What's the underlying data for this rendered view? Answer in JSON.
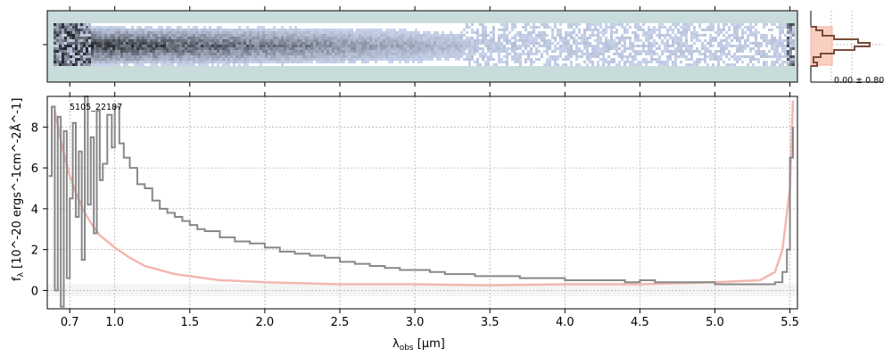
{
  "chart_data": [
    {
      "type": "heatmap",
      "panel": "2d-spectrum",
      "colormap": "bone_r",
      "background": "#c8dcdb",
      "profile_panel": {
        "type": "histogram",
        "range_label": "0.00 ± 0.80",
        "model_color": "#f4b09e",
        "data_color": "#7a4a3a"
      }
    },
    {
      "type": "line",
      "panel": "1d-spectrum",
      "object_label": "5105_22187",
      "xlabel_main": "λ",
      "xlabel_sub": "obs",
      "xlabel_unit": " [μm]",
      "ylabel_main": "f",
      "ylabel_sub": "λ",
      "ylabel_unit": " [10^-20 ergs^-1cm^-2Å^-1]",
      "x_ticks": [
        "0.7",
        "1.0",
        "1.5",
        "2.0",
        "2.5",
        "3.0",
        "3.5",
        "4.0",
        "4.5",
        "5.0",
        "5.5"
      ],
      "x_tick_values": [
        0.7,
        1.0,
        1.5,
        2.0,
        2.5,
        3.0,
        3.5,
        4.0,
        4.5,
        5.0,
        5.5
      ],
      "y_ticks": [
        "0",
        "2",
        "4",
        "6",
        "8"
      ],
      "y_tick_values": [
        0,
        2,
        4,
        6,
        8
      ],
      "xlim": [
        0.55,
        5.55
      ],
      "ylim": [
        -0.9,
        9.5
      ],
      "grid": true,
      "series": [
        {
          "role": "data",
          "color": "#888888",
          "x": [
            0.56,
            0.58,
            0.6,
            0.62,
            0.64,
            0.66,
            0.68,
            0.7,
            0.72,
            0.74,
            0.76,
            0.78,
            0.8,
            0.82,
            0.84,
            0.86,
            0.88,
            0.9,
            0.92,
            0.95,
            0.98,
            1.0,
            1.03,
            1.06,
            1.1,
            1.15,
            1.2,
            1.25,
            1.3,
            1.35,
            1.4,
            1.45,
            1.5,
            1.55,
            1.6,
            1.7,
            1.8,
            1.9,
            2.0,
            2.1,
            2.2,
            2.3,
            2.4,
            2.5,
            2.6,
            2.7,
            2.8,
            2.9,
            3.0,
            3.1,
            3.2,
            3.3,
            3.4,
            3.5,
            3.6,
            3.7,
            3.8,
            3.9,
            4.0,
            4.1,
            4.2,
            4.3,
            4.4,
            4.5,
            4.6,
            4.7,
            4.8,
            4.9,
            5.0,
            5.1,
            5.2,
            5.3,
            5.4,
            5.45,
            5.48,
            5.5,
            5.52
          ],
          "y": [
            5.6,
            9.0,
            0.0,
            8.5,
            -0.8,
            7.8,
            0.6,
            4.5,
            8.2,
            3.6,
            6.8,
            1.5,
            9.5,
            4.2,
            7.5,
            2.8,
            8.8,
            5.4,
            6.2,
            8.6,
            7.0,
            9.0,
            7.2,
            6.5,
            6.0,
            5.2,
            5.0,
            4.4,
            4.0,
            3.8,
            3.6,
            3.4,
            3.2,
            3.0,
            2.9,
            2.6,
            2.4,
            2.3,
            2.1,
            1.9,
            1.8,
            1.7,
            1.6,
            1.4,
            1.3,
            1.2,
            1.1,
            1.0,
            1.0,
            0.9,
            0.8,
            0.8,
            0.7,
            0.7,
            0.7,
            0.6,
            0.6,
            0.6,
            0.5,
            0.5,
            0.5,
            0.5,
            0.4,
            0.5,
            0.4,
            0.4,
            0.4,
            0.4,
            0.3,
            0.3,
            0.3,
            0.3,
            0.4,
            0.9,
            2.0,
            6.5,
            8.0
          ]
        },
        {
          "role": "model",
          "color": "#f4b6b0",
          "x": [
            0.6,
            0.65,
            0.7,
            0.75,
            0.8,
            0.85,
            0.9,
            1.0,
            1.1,
            1.2,
            1.3,
            1.4,
            1.5,
            1.7,
            2.0,
            2.5,
            3.0,
            3.5,
            4.0,
            4.5,
            5.0,
            5.3,
            5.4,
            5.45,
            5.5,
            5.52
          ],
          "y": [
            8.8,
            7.0,
            5.6,
            4.6,
            3.8,
            3.2,
            2.7,
            2.1,
            1.6,
            1.2,
            1.0,
            0.8,
            0.7,
            0.5,
            0.4,
            0.3,
            0.3,
            0.25,
            0.3,
            0.3,
            0.4,
            0.5,
            0.9,
            2.0,
            5.0,
            9.3
          ]
        }
      ]
    }
  ]
}
